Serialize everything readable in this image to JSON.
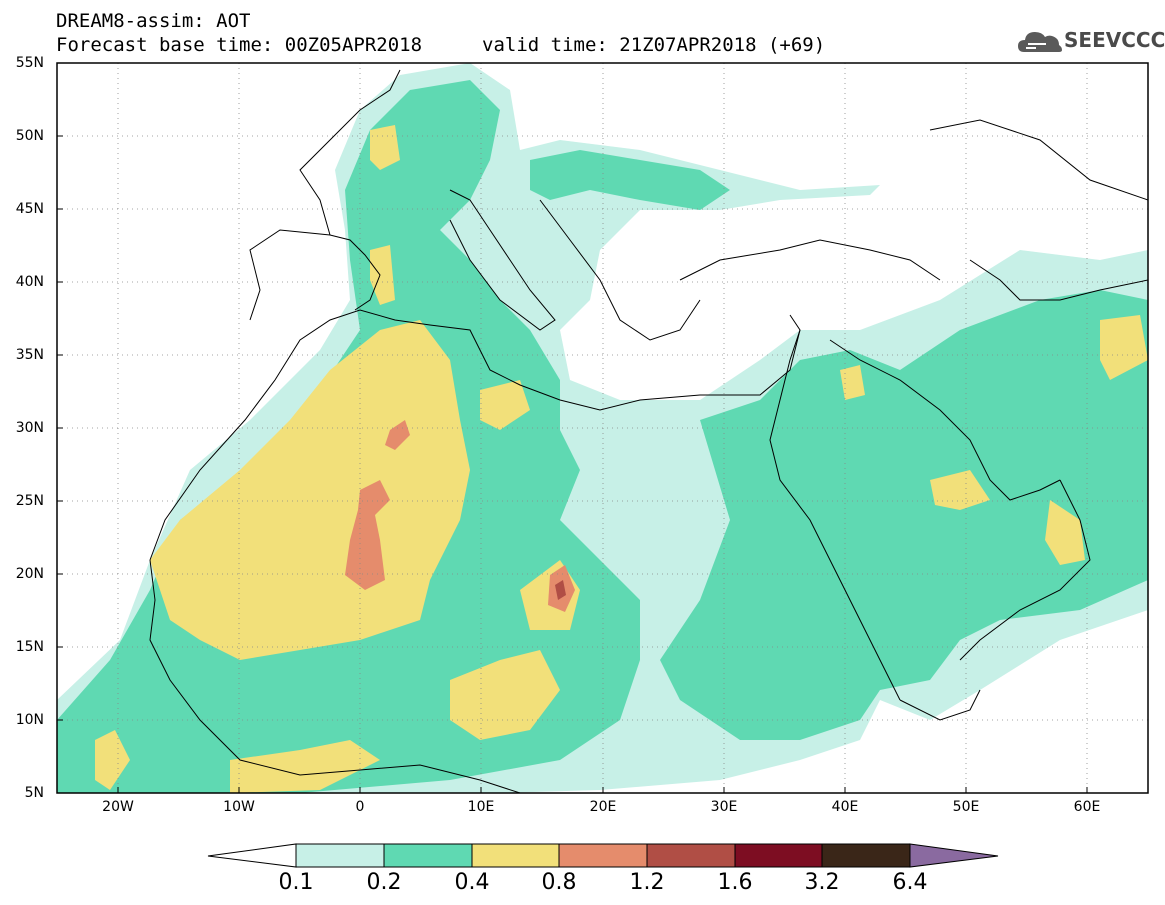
{
  "header": {
    "model_line": "DREAM8-assim: AOT",
    "base_line": "Forecast base time: 00Z05APR2018",
    "valid_line": "valid time: 21Z07APR2018 (+69)"
  },
  "logo": {
    "text": "SEEVCCC"
  },
  "map": {
    "projection": "plate carree",
    "lon_range": [
      -25,
      65
    ],
    "lat_range": [
      5,
      55
    ],
    "lat_labels": [
      "55N",
      "50N",
      "45N",
      "40N",
      "35N",
      "30N",
      "25N",
      "20N",
      "15N",
      "10N",
      "5N"
    ],
    "lon_labels": [
      "20W",
      "10W",
      "0",
      "10E",
      "20E",
      "30E",
      "40E",
      "50E",
      "60E"
    ],
    "grid": "dotted",
    "field": "Aerosol optical thickness"
  },
  "colorbar": {
    "levels": [
      "0.1",
      "0.2",
      "0.4",
      "0.8",
      "1.2",
      "1.6",
      "3.2",
      "6.4"
    ],
    "colors": [
      "#ffffff",
      "#c7f0e7",
      "#5fd9b2",
      "#f2e07a",
      "#e58c6c",
      "#b04e45",
      "#7d0d22",
      "#3a2618",
      "#8a6aa0"
    ]
  }
}
